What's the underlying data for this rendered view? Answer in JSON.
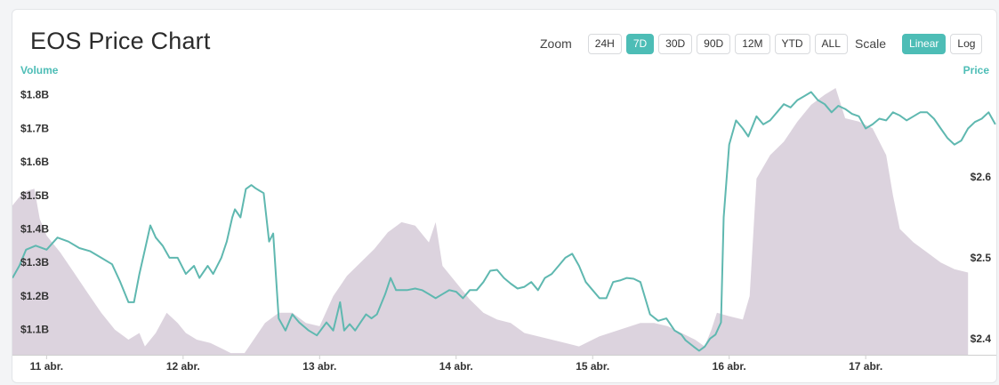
{
  "header": {
    "title": "EOS Price Chart",
    "zoom_label": "Zoom",
    "zoom_options": [
      {
        "label": "24H",
        "active": false
      },
      {
        "label": "7D",
        "active": true
      },
      {
        "label": "30D",
        "active": false
      },
      {
        "label": "90D",
        "active": false
      },
      {
        "label": "12M",
        "active": false
      },
      {
        "label": "YTD",
        "active": false
      },
      {
        "label": "ALL",
        "active": false
      }
    ],
    "scale_label": "Scale",
    "scale_options": [
      {
        "label": "Linear",
        "active": true
      },
      {
        "label": "Log",
        "active": false
      }
    ]
  },
  "colors": {
    "accent": "#4dbdb6",
    "volume_fill": "#dcd3de",
    "price_line": "#5fb8b0",
    "axis_text": "#333333"
  },
  "chart_data": {
    "type": "area",
    "left_axis_title": "Volume",
    "right_axis_title": "Price",
    "left_ticks": [
      "$1.8B",
      "$1.7B",
      "$1.6B",
      "$1.5B",
      "$1.4B",
      "$1.3B",
      "$1.2B",
      "$1.1B"
    ],
    "left_tick_values": [
      1.8,
      1.7,
      1.6,
      1.5,
      1.4,
      1.3,
      1.2,
      1.1
    ],
    "right_ticks": [
      "$2.6",
      "$2.5",
      "$2.4"
    ],
    "right_tick_values": [
      2.6,
      2.5,
      2.4
    ],
    "x_tick_labels": [
      "11 abr.",
      "12 abr.",
      "13 abr.",
      "14 abr.",
      "15 abr.",
      "16 abr.",
      "17 abr."
    ],
    "x_tick_values": [
      10.5,
      11.5,
      12.5,
      13.5,
      14.5,
      15.5,
      16.5
    ],
    "xlim": [
      10.25,
      17.47
    ],
    "volume_ylim": [
      1.025,
      1.82
    ],
    "price_ylim": [
      2.38,
      2.71
    ],
    "series": [
      {
        "name": "Volume",
        "values": [
          [
            10.25,
            1.47
          ],
          [
            10.33,
            1.51
          ],
          [
            10.41,
            1.52
          ],
          [
            10.45,
            1.43
          ],
          [
            10.5,
            1.38
          ],
          [
            10.6,
            1.33
          ],
          [
            10.7,
            1.27
          ],
          [
            10.8,
            1.21
          ],
          [
            10.9,
            1.15
          ],
          [
            11.0,
            1.1
          ],
          [
            11.1,
            1.07
          ],
          [
            11.18,
            1.09
          ],
          [
            11.22,
            1.05
          ],
          [
            11.3,
            1.09
          ],
          [
            11.38,
            1.15
          ],
          [
            11.46,
            1.12
          ],
          [
            11.52,
            1.09
          ],
          [
            11.6,
            1.07
          ],
          [
            11.7,
            1.06
          ],
          [
            11.8,
            1.04
          ],
          [
            11.85,
            1.03
          ],
          [
            11.95,
            1.03
          ],
          [
            12.0,
            1.06
          ],
          [
            12.1,
            1.12
          ],
          [
            12.2,
            1.15
          ],
          [
            12.3,
            1.15
          ],
          [
            12.4,
            1.12
          ],
          [
            12.5,
            1.11
          ],
          [
            12.6,
            1.2
          ],
          [
            12.7,
            1.26
          ],
          [
            12.8,
            1.3
          ],
          [
            12.9,
            1.34
          ],
          [
            13.0,
            1.39
          ],
          [
            13.1,
            1.42
          ],
          [
            13.2,
            1.41
          ],
          [
            13.3,
            1.36
          ],
          [
            13.35,
            1.42
          ],
          [
            13.4,
            1.29
          ],
          [
            13.5,
            1.24
          ],
          [
            13.6,
            1.19
          ],
          [
            13.7,
            1.15
          ],
          [
            13.8,
            1.13
          ],
          [
            13.9,
            1.12
          ],
          [
            14.0,
            1.09
          ],
          [
            14.1,
            1.08
          ],
          [
            14.2,
            1.07
          ],
          [
            14.3,
            1.06
          ],
          [
            14.4,
            1.05
          ],
          [
            14.55,
            1.08
          ],
          [
            14.7,
            1.1
          ],
          [
            14.85,
            1.12
          ],
          [
            14.95,
            1.12
          ],
          [
            15.05,
            1.11
          ],
          [
            15.15,
            1.09
          ],
          [
            15.25,
            1.07
          ],
          [
            15.32,
            1.05
          ],
          [
            15.37,
            1.1
          ],
          [
            15.41,
            1.15
          ],
          [
            15.5,
            1.14
          ],
          [
            15.6,
            1.13
          ],
          [
            15.65,
            1.2
          ],
          [
            15.7,
            1.55
          ],
          [
            15.8,
            1.62
          ],
          [
            15.9,
            1.66
          ],
          [
            16.0,
            1.72
          ],
          [
            16.1,
            1.77
          ],
          [
            16.2,
            1.8
          ],
          [
            16.28,
            1.82
          ],
          [
            16.35,
            1.73
          ],
          [
            16.45,
            1.72
          ],
          [
            16.55,
            1.7
          ],
          [
            16.65,
            1.62
          ],
          [
            16.7,
            1.5
          ],
          [
            16.75,
            1.4
          ],
          [
            16.85,
            1.36
          ],
          [
            16.95,
            1.33
          ],
          [
            17.05,
            1.3
          ],
          [
            17.15,
            1.28
          ],
          [
            17.25,
            1.27
          ]
        ]
      },
      {
        "name": "Price",
        "values": [
          [
            10.25,
            2.475
          ],
          [
            10.3,
            2.49
          ],
          [
            10.35,
            2.51
          ],
          [
            10.42,
            2.515
          ],
          [
            10.5,
            2.51
          ],
          [
            10.58,
            2.525
          ],
          [
            10.66,
            2.52
          ],
          [
            10.74,
            2.512
          ],
          [
            10.82,
            2.508
          ],
          [
            10.9,
            2.5
          ],
          [
            10.98,
            2.492
          ],
          [
            11.04,
            2.47
          ],
          [
            11.1,
            2.445
          ],
          [
            11.14,
            2.445
          ],
          [
            11.18,
            2.48
          ],
          [
            11.22,
            2.51
          ],
          [
            11.26,
            2.54
          ],
          [
            11.3,
            2.525
          ],
          [
            11.35,
            2.515
          ],
          [
            11.4,
            2.5
          ],
          [
            11.46,
            2.5
          ],
          [
            11.52,
            2.48
          ],
          [
            11.58,
            2.49
          ],
          [
            11.62,
            2.475
          ],
          [
            11.68,
            2.49
          ],
          [
            11.72,
            2.48
          ],
          [
            11.78,
            2.5
          ],
          [
            11.82,
            2.52
          ],
          [
            11.86,
            2.55
          ],
          [
            11.88,
            2.56
          ],
          [
            11.92,
            2.55
          ],
          [
            11.96,
            2.585
          ],
          [
            12.0,
            2.59
          ],
          [
            12.03,
            2.586
          ],
          [
            12.06,
            2.583
          ],
          [
            12.09,
            2.58
          ],
          [
            12.13,
            2.52
          ],
          [
            12.16,
            2.53
          ],
          [
            12.2,
            2.425
          ],
          [
            12.25,
            2.41
          ],
          [
            12.3,
            2.43
          ],
          [
            12.35,
            2.42
          ],
          [
            12.42,
            2.41
          ],
          [
            12.48,
            2.404
          ],
          [
            12.55,
            2.42
          ],
          [
            12.6,
            2.41
          ],
          [
            12.65,
            2.445
          ],
          [
            12.68,
            2.41
          ],
          [
            12.72,
            2.418
          ],
          [
            12.76,
            2.41
          ],
          [
            12.8,
            2.42
          ],
          [
            12.84,
            2.43
          ],
          [
            12.88,
            2.425
          ],
          [
            12.92,
            2.43
          ],
          [
            12.98,
            2.455
          ],
          [
            13.02,
            2.475
          ],
          [
            13.06,
            2.46
          ],
          [
            13.1,
            2.46
          ],
          [
            13.14,
            2.46
          ],
          [
            13.2,
            2.462
          ],
          [
            13.25,
            2.46
          ],
          [
            13.3,
            2.455
          ],
          [
            13.35,
            2.45
          ],
          [
            13.4,
            2.455
          ],
          [
            13.45,
            2.46
          ],
          [
            13.5,
            2.458
          ],
          [
            13.55,
            2.45
          ],
          [
            13.6,
            2.46
          ],
          [
            13.65,
            2.46
          ],
          [
            13.7,
            2.47
          ],
          [
            13.75,
            2.484
          ],
          [
            13.8,
            2.485
          ],
          [
            13.85,
            2.475
          ],
          [
            13.9,
            2.468
          ],
          [
            13.95,
            2.462
          ],
          [
            14.0,
            2.464
          ],
          [
            14.05,
            2.47
          ],
          [
            14.1,
            2.46
          ],
          [
            14.15,
            2.475
          ],
          [
            14.2,
            2.48
          ],
          [
            14.25,
            2.49
          ],
          [
            14.3,
            2.5
          ],
          [
            14.35,
            2.505
          ],
          [
            14.4,
            2.49
          ],
          [
            14.45,
            2.47
          ],
          [
            14.5,
            2.46
          ],
          [
            14.55,
            2.45
          ],
          [
            14.6,
            2.45
          ],
          [
            14.65,
            2.47
          ],
          [
            14.7,
            2.472
          ],
          [
            14.75,
            2.475
          ],
          [
            14.8,
            2.474
          ],
          [
            14.85,
            2.47
          ],
          [
            14.92,
            2.43
          ],
          [
            14.98,
            2.422
          ],
          [
            15.04,
            2.425
          ],
          [
            15.1,
            2.41
          ],
          [
            15.15,
            2.405
          ],
          [
            15.18,
            2.398
          ],
          [
            15.24,
            2.39
          ],
          [
            15.28,
            2.385
          ],
          [
            15.32,
            2.39
          ],
          [
            15.36,
            2.4
          ],
          [
            15.4,
            2.405
          ],
          [
            15.44,
            2.42
          ],
          [
            15.46,
            2.55
          ],
          [
            15.5,
            2.64
          ],
          [
            15.55,
            2.67
          ],
          [
            15.6,
            2.66
          ],
          [
            15.64,
            2.65
          ],
          [
            15.7,
            2.675
          ],
          [
            15.75,
            2.665
          ],
          [
            15.8,
            2.67
          ],
          [
            15.85,
            2.68
          ],
          [
            15.9,
            2.69
          ],
          [
            15.95,
            2.686
          ],
          [
            16.0,
            2.695
          ],
          [
            16.05,
            2.7
          ],
          [
            16.1,
            2.705
          ],
          [
            16.15,
            2.695
          ],
          [
            16.2,
            2.69
          ],
          [
            16.25,
            2.68
          ],
          [
            16.3,
            2.688
          ],
          [
            16.35,
            2.684
          ],
          [
            16.4,
            2.678
          ],
          [
            16.45,
            2.675
          ],
          [
            16.5,
            2.66
          ],
          [
            16.55,
            2.665
          ],
          [
            16.6,
            2.672
          ],
          [
            16.65,
            2.67
          ],
          [
            16.7,
            2.68
          ],
          [
            16.75,
            2.676
          ],
          [
            16.8,
            2.67
          ],
          [
            16.85,
            2.675
          ],
          [
            16.9,
            2.68
          ],
          [
            16.95,
            2.68
          ],
          [
            17.0,
            2.672
          ],
          [
            17.05,
            2.66
          ],
          [
            17.1,
            2.648
          ],
          [
            17.15,
            2.64
          ],
          [
            17.2,
            2.645
          ],
          [
            17.25,
            2.66
          ],
          [
            17.3,
            2.668
          ],
          [
            17.35,
            2.672
          ],
          [
            17.4,
            2.68
          ],
          [
            17.45,
            2.665
          ]
        ]
      }
    ]
  }
}
